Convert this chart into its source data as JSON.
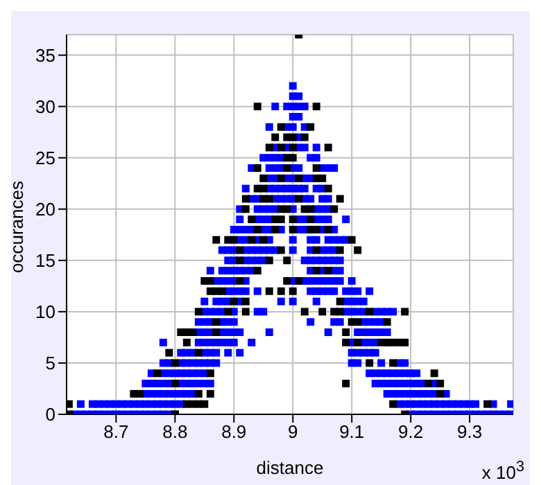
{
  "chart_data": {
    "type": "scatter",
    "xlabel": "distance",
    "ylabel": "occurances",
    "annotations": [
      "x 10$^{3}$"
    ],
    "xlim": [
      8.616,
      9.374
    ],
    "xticks": [
      8.7,
      8.8,
      8.9,
      9.0,
      9.1,
      9.2,
      9.3
    ],
    "ylim": [
      0,
      37
    ],
    "yticks": [
      0,
      5,
      10,
      15,
      20,
      25,
      30,
      35
    ],
    "grid": true,
    "legend": false,
    "marker": "square",
    "series": [
      {
        "color": "#0000ff",
        "x": [
          8.63,
          8.64,
          8.65,
          8.66,
          8.67,
          8.68,
          8.69,
          8.7,
          8.71,
          8.72,
          8.73,
          8.74,
          8.75,
          8.76,
          8.77,
          8.78,
          8.79,
          8.8,
          9.2,
          9.21,
          9.22,
          9.23,
          9.24,
          9.25,
          9.26,
          9.27,
          9.28,
          9.29,
          9.3,
          9.31,
          9.32,
          9.33,
          9.34,
          9.35,
          9.36,
          9.37,
          8.64,
          8.66,
          8.67,
          8.68,
          8.69,
          8.7,
          8.71,
          8.72,
          8.73,
          8.74,
          8.75,
          8.76,
          8.77,
          8.78,
          8.79,
          8.8,
          8.81,
          9.18,
          9.19,
          9.2,
          9.21,
          9.22,
          9.23,
          9.24,
          9.25,
          9.26,
          9.27,
          9.28,
          9.29,
          9.3,
          9.31,
          9.34,
          9.37,
          8.75,
          8.76,
          8.77,
          8.78,
          8.79,
          8.8,
          8.81,
          8.82,
          8.83,
          9.16,
          9.17,
          9.18,
          9.19,
          9.2,
          9.21,
          9.22,
          9.23,
          9.24,
          9.26,
          8.75,
          8.76,
          8.77,
          8.78,
          8.79,
          8.81,
          8.82,
          8.83,
          8.84,
          8.85,
          8.86,
          9.14,
          9.15,
          9.16,
          9.17,
          9.18,
          9.19,
          9.2,
          9.21,
          9.22,
          9.24,
          8.76,
          8.78,
          8.79,
          8.8,
          8.81,
          8.82,
          8.83,
          8.84,
          8.85,
          9.13,
          9.14,
          9.15,
          9.16,
          9.17,
          9.18,
          9.19,
          9.2,
          9.21,
          8.78,
          8.79,
          8.81,
          8.82,
          8.83,
          8.84,
          8.85,
          8.86,
          8.87,
          9.1,
          9.11,
          9.15,
          9.18,
          9.19,
          8.81,
          8.82,
          8.83,
          8.85,
          8.86,
          8.87,
          8.89,
          8.91,
          9.1,
          9.11,
          9.12,
          9.13,
          9.14,
          8.78,
          8.84,
          8.85,
          8.86,
          8.87,
          8.88,
          8.89,
          8.9,
          8.93,
          9.1,
          9.12,
          9.13,
          9.14,
          8.84,
          8.85,
          8.86,
          8.88,
          8.89,
          8.9,
          8.91,
          8.96,
          9.06,
          9.11,
          9.12,
          9.13,
          9.14,
          9.15,
          9.16,
          8.84,
          8.85,
          8.86,
          8.88,
          8.89,
          8.9,
          9.03,
          9.07,
          9.08,
          9.12,
          9.13,
          9.14,
          9.15,
          8.85,
          8.86,
          8.87,
          8.88,
          8.9,
          8.94,
          8.95,
          9.09,
          9.1,
          9.11,
          9.12,
          9.14,
          9.15,
          9.16,
          9.17,
          8.85,
          8.87,
          8.88,
          8.89,
          8.91,
          8.98,
          9,
          9.04,
          9.09,
          9.1,
          9.11,
          9.12,
          8.89,
          8.9,
          8.91,
          8.92,
          8.94,
          9.03,
          9.04,
          9.05,
          9.06,
          9.07,
          9.09,
          9.1,
          9.11,
          9.13,
          8.87,
          8.88,
          8.89,
          8.9,
          8.92,
          9,
          9.02,
          9.03,
          9.04,
          9.05,
          9.06,
          9.07,
          9.08,
          9.1,
          8.86,
          8.88,
          8.89,
          8.9,
          8.91,
          8.92,
          8.93,
          9.03,
          9.05,
          9.07,
          9.08,
          8.89,
          8.9,
          8.92,
          8.93,
          8.94,
          8.95,
          9.02,
          9.03,
          9.04,
          9.05,
          9.06,
          9.07,
          9.08,
          8.88,
          8.89,
          8.9,
          8.92,
          8.93,
          8.94,
          8.95,
          8.96,
          8.97,
          9,
          9.03,
          9.05,
          9.06,
          9.07,
          8.91,
          8.92,
          8.94,
          8.96,
          9,
          9.03,
          9.04,
          9.06,
          9.07,
          9.08,
          9.09,
          8.9,
          8.91,
          8.92,
          8.93,
          8.95,
          8.96,
          8.98,
          9.01,
          9.02,
          9.05,
          9.07,
          8.91,
          8.94,
          8.95,
          8.96,
          9.01,
          9.02,
          9.04,
          9.05,
          9.06,
          9.09,
          8.91,
          8.94,
          8.95,
          8.96,
          8.97,
          9,
          9.04,
          9.05,
          9.06,
          8.93,
          8.94,
          8.97,
          8.98,
          8.99,
          9,
          9.02,
          9.03,
          9.05,
          9.06,
          8.92,
          8.96,
          8.97,
          8.98,
          8.99,
          9,
          9.01,
          9.02,
          9.04,
          9.05,
          8.96,
          8.97,
          8.99,
          9,
          9.02,
          9.03,
          8.93,
          8.96,
          8.97,
          8.98,
          9,
          9.01,
          9.05,
          9.06,
          9.07,
          8.95,
          8.96,
          8.97,
          8.98,
          9.03,
          9.04,
          8.97,
          8.99,
          9.01,
          9.02,
          9.04,
          9.01,
          8.96,
          8.99,
          9,
          9.02,
          9,
          9.01,
          8.97,
          8.99,
          9,
          9.01,
          9.02,
          9,
          9.01,
          9
        ],
        "values": [
          0,
          0,
          0,
          0,
          0,
          0,
          0,
          0,
          0,
          0,
          0,
          0,
          0,
          0,
          0,
          0,
          0,
          0,
          0,
          0,
          0,
          0,
          0,
          0,
          0,
          0,
          0,
          0,
          0,
          0,
          0,
          0,
          0,
          0,
          0,
          0,
          1,
          1,
          1,
          1,
          1,
          1,
          1,
          1,
          1,
          1,
          1,
          1,
          1,
          1,
          1,
          1,
          1,
          1,
          1,
          1,
          1,
          1,
          1,
          1,
          1,
          1,
          1,
          1,
          1,
          1,
          1,
          1,
          1,
          2,
          2,
          2,
          2,
          2,
          2,
          2,
          2,
          2,
          2,
          2,
          2,
          2,
          2,
          2,
          2,
          2,
          2,
          2,
          3,
          3,
          3,
          3,
          3,
          3,
          3,
          3,
          3,
          3,
          3,
          3,
          3,
          3,
          3,
          3,
          3,
          3,
          3,
          3,
          3,
          4,
          4,
          4,
          4,
          4,
          4,
          4,
          4,
          4,
          4,
          4,
          4,
          4,
          4,
          4,
          4,
          4,
          4,
          5,
          5,
          5,
          5,
          5,
          5,
          5,
          5,
          5,
          5,
          5,
          5,
          5,
          5,
          6,
          6,
          6,
          6,
          6,
          6,
          6,
          6,
          6,
          6,
          6,
          6,
          6,
          7,
          7,
          7,
          7,
          7,
          7,
          7,
          7,
          7,
          7,
          7,
          7,
          7,
          8,
          8,
          8,
          8,
          8,
          8,
          8,
          8,
          8,
          8,
          8,
          8,
          8,
          8,
          8,
          9,
          9,
          9,
          9,
          9,
          9,
          9,
          9,
          9,
          9,
          9,
          9,
          9,
          10,
          10,
          10,
          10,
          10,
          10,
          10,
          10,
          10,
          10,
          10,
          10,
          10,
          10,
          10,
          11,
          11,
          11,
          11,
          11,
          11,
          11,
          11,
          11,
          11,
          11,
          11,
          12,
          12,
          12,
          12,
          12,
          12,
          12,
          12,
          12,
          12,
          12,
          12,
          12,
          12,
          13,
          13,
          13,
          13,
          13,
          13,
          13,
          13,
          13,
          13,
          13,
          13,
          13,
          13,
          14,
          14,
          14,
          14,
          14,
          14,
          14,
          14,
          14,
          14,
          14,
          15,
          15,
          15,
          15,
          15,
          15,
          15,
          15,
          15,
          15,
          15,
          15,
          15,
          16,
          16,
          16,
          16,
          16,
          16,
          16,
          16,
          16,
          16,
          16,
          16,
          16,
          16,
          17,
          17,
          17,
          17,
          17,
          17,
          17,
          17,
          17,
          17,
          17,
          18,
          18,
          18,
          18,
          18,
          18,
          18,
          18,
          18,
          18,
          18,
          19,
          19,
          19,
          19,
          19,
          19,
          19,
          19,
          19,
          19,
          20,
          20,
          20,
          20,
          20,
          20,
          20,
          20,
          20,
          21,
          21,
          21,
          21,
          21,
          21,
          21,
          21,
          21,
          21,
          22,
          22,
          22,
          22,
          22,
          22,
          22,
          22,
          22,
          22,
          23,
          23,
          23,
          23,
          23,
          23,
          24,
          24,
          24,
          24,
          24,
          24,
          24,
          24,
          24,
          25,
          25,
          25,
          25,
          25,
          25,
          26,
          26,
          26,
          26,
          26,
          27,
          28,
          28,
          28,
          28,
          29,
          29,
          30,
          30,
          30,
          30,
          30,
          31,
          31,
          32
        ]
      },
      {
        "color": "#000000",
        "x": [
          8.62,
          8.8,
          9.19,
          8.62,
          8.82,
          8.83,
          8.84,
          8.85,
          9.17,
          9.33,
          8.73,
          8.74,
          8.84,
          8.86,
          9.25,
          8.8,
          9.09,
          9.23,
          9.25,
          8.77,
          8.86,
          9.24,
          8.8,
          9.13,
          9.17,
          8.79,
          8.84,
          8.82,
          9.09,
          9.11,
          9.15,
          9.16,
          9.17,
          9.18,
          9.19,
          8.81,
          8.82,
          8.83,
          8.87,
          9.09,
          8.87,
          9.1,
          9.11,
          9.16,
          8.84,
          8.89,
          8.92,
          9.02,
          9.05,
          9.07,
          9.08,
          9.13,
          9.19,
          8.9,
          8.92,
          9.08,
          8.86,
          8.87,
          8.88,
          8.96,
          8.98,
          9,
          8.85,
          8.86,
          8.91,
          8.99,
          9.01,
          8.94,
          9.04,
          9.06,
          8.91,
          8.96,
          8.99,
          8.91,
          8.98,
          9.04,
          9.08,
          9.11,
          8.87,
          8.89,
          8.9,
          8.93,
          8.95,
          9.1,
          8.94,
          8.97,
          9,
          9.03,
          9.04,
          9.06,
          8.93,
          8.97,
          8.98,
          9,
          9.03,
          8.92,
          8.98,
          8.99,
          9.02,
          9.03,
          9.07,
          8.92,
          8.95,
          8.96,
          9.01,
          9.08,
          8.94,
          8.95,
          9.06,
          8.95,
          8.98,
          9.01,
          9.04,
          9.05,
          8.94,
          8.99,
          9.04,
          8.99,
          9,
          8.96,
          8.98,
          9,
          9.06,
          8.97,
          8.99,
          9,
          9.02,
          8.98,
          9.03,
          8.94,
          9.04,
          9.01
        ],
        "values": [
          0,
          0,
          0,
          1,
          1,
          1,
          1,
          1,
          1,
          1,
          2,
          2,
          2,
          2,
          2,
          3,
          3,
          3,
          3,
          4,
          4,
          4,
          5,
          5,
          5,
          6,
          6,
          7,
          7,
          7,
          7,
          7,
          7,
          7,
          7,
          8,
          8,
          8,
          8,
          8,
          9,
          9,
          9,
          9,
          10,
          10,
          10,
          10,
          10,
          10,
          10,
          10,
          10,
          11,
          11,
          11,
          12,
          12,
          12,
          12,
          12,
          12,
          13,
          13,
          13,
          13,
          13,
          14,
          14,
          14,
          15,
          15,
          15,
          16,
          16,
          16,
          16,
          16,
          17,
          17,
          17,
          17,
          17,
          17,
          18,
          18,
          18,
          18,
          18,
          18,
          19,
          19,
          19,
          19,
          19,
          20,
          20,
          20,
          20,
          20,
          20,
          21,
          21,
          21,
          21,
          21,
          22,
          22,
          22,
          23,
          23,
          23,
          23,
          23,
          24,
          24,
          24,
          25,
          25,
          26,
          26,
          26,
          26,
          27,
          27,
          27,
          27,
          28,
          28,
          30,
          30,
          37
        ]
      }
    ]
  }
}
